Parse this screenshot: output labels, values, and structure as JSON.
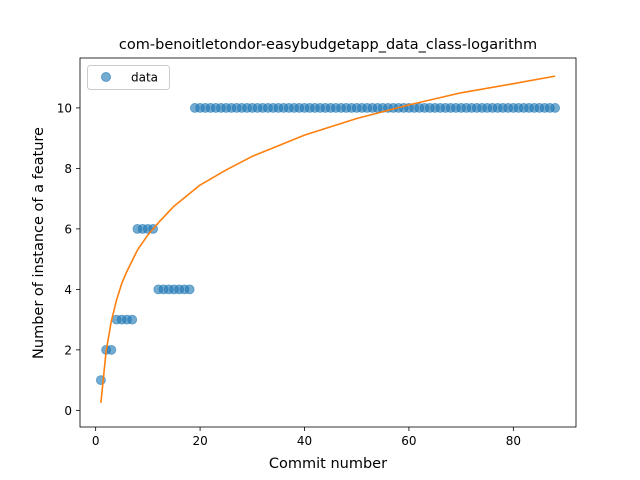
{
  "chart_data": {
    "type": "scatter",
    "title": "com-benoitletondor-easybudgetapp_data_class-logarithm",
    "xlabel": "Commit number",
    "ylabel": "Number of instance of a feature",
    "xlim": [
      -3,
      92
    ],
    "ylim": [
      -0.55,
      11.65
    ],
    "xticks": [
      0,
      20,
      40,
      60,
      80
    ],
    "yticks": [
      0,
      2,
      4,
      6,
      8,
      10
    ],
    "grid": false,
    "legend_position": "upper-left",
    "colors": {
      "data": "#1f77b4",
      "fit": "#ff7f0e"
    },
    "series": [
      {
        "name": "data",
        "type": "scatter",
        "x": [
          1,
          2,
          3,
          4,
          5,
          6,
          7,
          8,
          9,
          10,
          11,
          12,
          13,
          14,
          15,
          16,
          17,
          18,
          19,
          20,
          21,
          22,
          23,
          24,
          25,
          26,
          27,
          28,
          29,
          30,
          31,
          32,
          33,
          34,
          35,
          36,
          37,
          38,
          39,
          40,
          41,
          42,
          43,
          44,
          45,
          46,
          47,
          48,
          49,
          50,
          51,
          52,
          53,
          54,
          55,
          56,
          57,
          58,
          59,
          60,
          61,
          62,
          63,
          64,
          65,
          66,
          67,
          68,
          69,
          70,
          71,
          72,
          73,
          74,
          75,
          76,
          77,
          78,
          79,
          80,
          81,
          82,
          83,
          84,
          85,
          86,
          87,
          88
        ],
        "y": [
          1,
          2,
          2,
          3,
          3,
          3,
          3,
          6,
          6,
          6,
          6,
          4,
          4,
          4,
          4,
          4,
          4,
          4,
          10,
          10,
          10,
          10,
          10,
          10,
          10,
          10,
          10,
          10,
          10,
          10,
          10,
          10,
          10,
          10,
          10,
          10,
          10,
          10,
          10,
          10,
          10,
          10,
          10,
          10,
          10,
          10,
          10,
          10,
          10,
          10,
          10,
          10,
          10,
          10,
          10,
          10,
          10,
          10,
          10,
          10,
          10,
          10,
          10,
          10,
          10,
          10,
          10,
          10,
          10,
          10,
          10,
          10,
          10,
          10,
          10,
          10,
          10,
          10,
          10,
          10,
          10,
          10,
          10,
          10,
          10,
          10,
          10,
          10
        ]
      },
      {
        "type": "line",
        "x": [
          1,
          2,
          3,
          4,
          5,
          6,
          8,
          10,
          12,
          15,
          20,
          25,
          30,
          40,
          50,
          60,
          70,
          80,
          88
        ],
        "y": [
          0.25,
          1.95,
          2.95,
          3.65,
          4.2,
          4.6,
          5.3,
          5.8,
          6.2,
          6.75,
          7.45,
          7.95,
          8.4,
          9.1,
          9.65,
          10.1,
          10.5,
          10.8,
          11.05
        ]
      }
    ]
  }
}
